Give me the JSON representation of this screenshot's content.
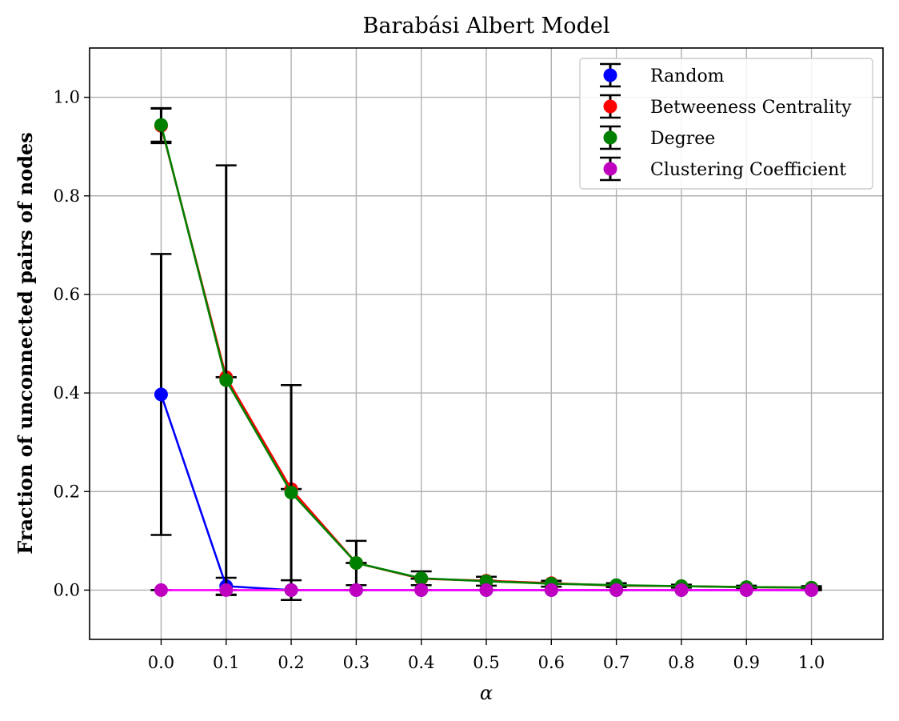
{
  "chart_data": {
    "type": "line",
    "title": "Barabási Albert Model",
    "xlabel": "α",
    "ylabel": "Fraction of unconnected pairs of nodes",
    "x": [
      0.0,
      0.1,
      0.2,
      0.3,
      0.4,
      0.5,
      0.6,
      0.7,
      0.8,
      0.9,
      1.0
    ],
    "x_tick_labels": [
      "0.0",
      "0.1",
      "0.2",
      "0.3",
      "0.4",
      "0.5",
      "0.6",
      "0.7",
      "0.8",
      "0.9",
      "1.0"
    ],
    "y_ticks": [
      0.0,
      0.2,
      0.4,
      0.6,
      0.8,
      1.0
    ],
    "y_tick_labels": [
      "0.0",
      "0.2",
      "0.4",
      "0.6",
      "0.8",
      "1.0"
    ],
    "xlim": [
      -0.11,
      1.11
    ],
    "ylim": [
      -0.1,
      1.1
    ],
    "grid": true,
    "legend_position": "top-right",
    "series": [
      {
        "name": "Random",
        "color": "#0000ff",
        "line_color": "#0000ff",
        "values": [
          0.397,
          0.008,
          0.0,
          0.0,
          0.0,
          0.0,
          0.0,
          0.0,
          0.0,
          0.0,
          0.0
        ],
        "errors": [
          0.285,
          0.017,
          0.02,
          0.0,
          0.0,
          0.0,
          0.0,
          0.0,
          0.0,
          0.0,
          0.0
        ]
      },
      {
        "name": "Betweeness Centrality",
        "color": "#ff0000",
        "line_color": "#ff0000",
        "values": [
          0.942,
          0.432,
          0.205,
          0.055,
          0.023,
          0.019,
          0.014,
          0.009,
          0.008,
          0.006,
          0.005
        ],
        "errors": [
          0.035,
          0.0,
          0.0,
          0.0,
          0.0,
          0.0,
          0.0,
          0.0,
          0.0,
          0.0,
          0.0
        ]
      },
      {
        "name": "Degree",
        "color": "#008000",
        "line_color": "#008000",
        "values": [
          0.944,
          0.426,
          0.198,
          0.055,
          0.024,
          0.018,
          0.013,
          0.01,
          0.008,
          0.006,
          0.005
        ],
        "errors": [
          0.034,
          0.436,
          0.218,
          0.045,
          0.014,
          0.009,
          0.006,
          0.004,
          0.003,
          0.003,
          0.003
        ]
      },
      {
        "name": "Clustering Coefficient",
        "color": "#bf00bf",
        "line_color": "#ff00ff",
        "values": [
          0.0,
          0.0,
          0.0,
          0.0,
          0.0,
          0.0,
          0.0,
          0.0,
          0.0,
          0.0,
          0.0
        ],
        "errors": [
          0.0,
          0.0,
          0.0,
          0.0,
          0.0,
          0.0,
          0.0,
          0.0,
          0.0,
          0.0,
          0.0
        ]
      }
    ]
  }
}
